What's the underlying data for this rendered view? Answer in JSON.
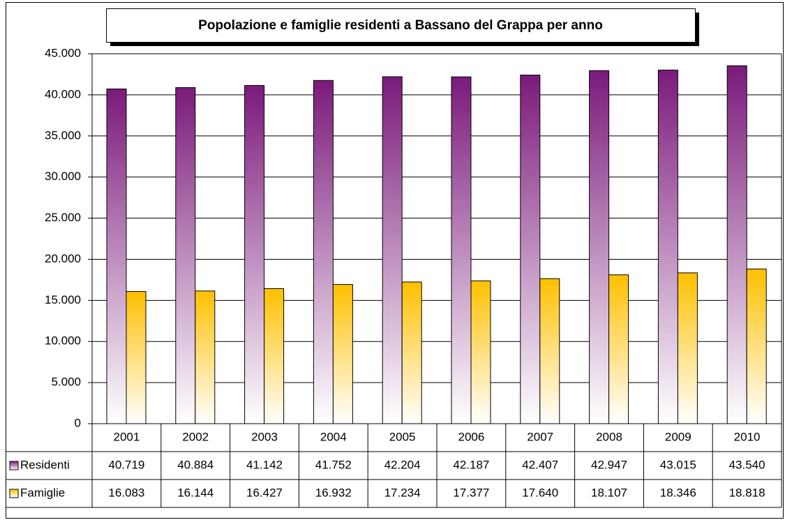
{
  "chart_data": {
    "type": "bar",
    "title": "Popolazione e famiglie residenti a Bassano del Grappa per anno",
    "categories": [
      "2001",
      "2002",
      "2003",
      "2004",
      "2005",
      "2006",
      "2007",
      "2008",
      "2009",
      "2010"
    ],
    "series": [
      {
        "name": "Residenti",
        "color": "#7b1a7b",
        "values": [
          40719,
          40884,
          41142,
          41752,
          42204,
          42187,
          42407,
          42947,
          43015,
          43540
        ],
        "value_labels": [
          "40.719",
          "40.884",
          "41.142",
          "41.752",
          "42.204",
          "42.187",
          "42.407",
          "42.947",
          "43.015",
          "43.540"
        ]
      },
      {
        "name": "Famiglie",
        "color": "#ffc000",
        "values": [
          16083,
          16144,
          16427,
          16932,
          17234,
          17377,
          17640,
          18107,
          18346,
          18818
        ],
        "value_labels": [
          "16.083",
          "16.144",
          "16.427",
          "16.932",
          "17.234",
          "17.377",
          "17.640",
          "18.107",
          "18.346",
          "18.818"
        ]
      }
    ],
    "ylim": [
      0,
      45000
    ],
    "yticks": [
      0,
      {
        "value": 5000,
        "label": "5.000"
      },
      {
        "value": 10000,
        "label": "10.000"
      },
      {
        "value": 15000,
        "label": "15.000"
      },
      {
        "value": 20000,
        "label": "20.000"
      },
      {
        "value": 25000,
        "label": "25.000"
      },
      {
        "value": 30000,
        "label": "30.000"
      },
      {
        "value": 35000,
        "label": "35.000"
      },
      {
        "value": 40000,
        "label": "40.000"
      },
      {
        "value": 45000,
        "label": "45.000"
      }
    ],
    "grid": true
  }
}
